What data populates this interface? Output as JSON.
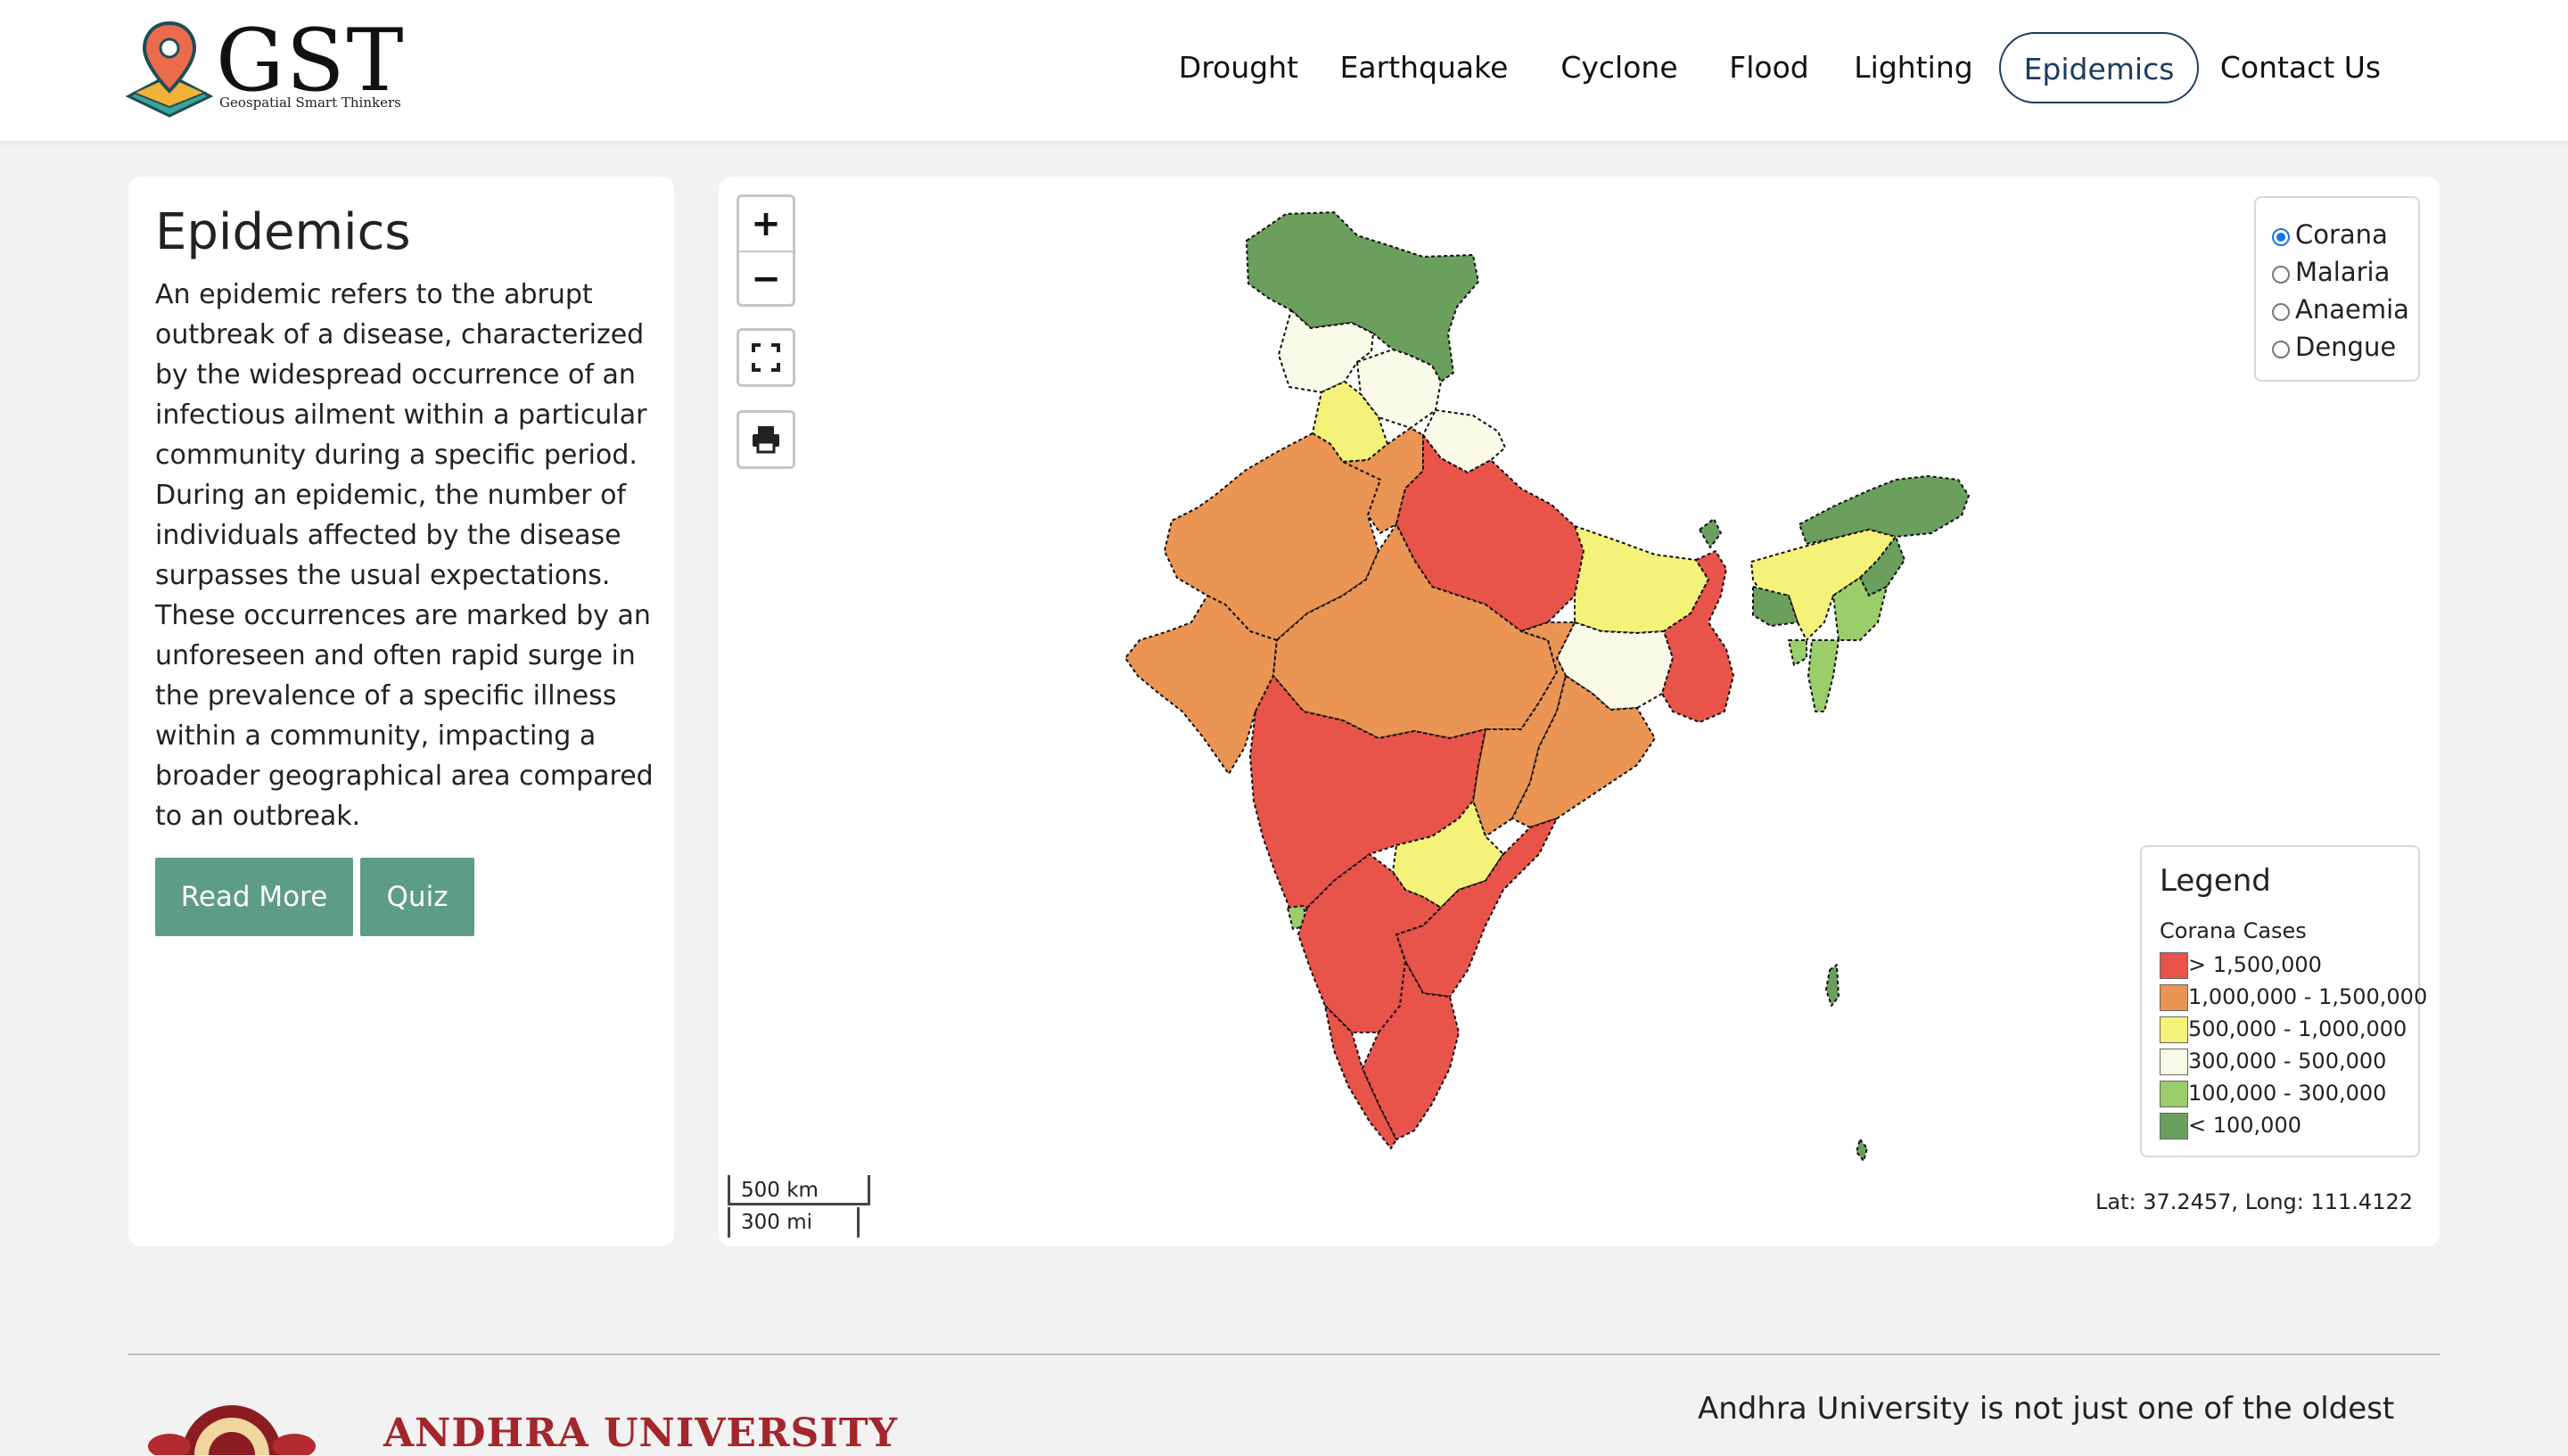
{
  "brand": {
    "name": "GST",
    "tagline": "Geospatial Smart Thinkers"
  },
  "nav": {
    "items": [
      {
        "label": "Drought",
        "active": false
      },
      {
        "label": "Earthquake",
        "active": false
      },
      {
        "label": "Cyclone",
        "active": false
      },
      {
        "label": "Flood",
        "active": false
      },
      {
        "label": "Lighting",
        "active": false
      },
      {
        "label": "Epidemics",
        "active": true
      },
      {
        "label": "Contact Us",
        "active": false
      }
    ]
  },
  "side": {
    "title": "Epidemics",
    "description": "An epidemic refers to the abrupt outbreak of a disease, characterized by the widespread occurrence of an infectious ailment within a particular community during a specific period. During an epidemic, the number of individuals affected by the disease surpasses the usual expectations. These occurrences are marked by an unforeseen and often rapid surge in the prevalence of a specific illness within a community, impacting a broader geographical area compared to an outbreak.",
    "read_more_label": "Read More",
    "quiz_label": "Quiz"
  },
  "map": {
    "zoom_in": "+",
    "zoom_out": "−",
    "layers": [
      {
        "label": "Corana",
        "selected": true
      },
      {
        "label": "Malaria",
        "selected": false
      },
      {
        "label": "Anaemia",
        "selected": false
      },
      {
        "label": "Dengue",
        "selected": false
      }
    ],
    "legend": {
      "title": "Legend",
      "subtitle": "Corana Cases",
      "rows": [
        {
          "label": "> 1,500,000",
          "color": "#e8534a"
        },
        {
          "label": "1,000,000 - 1,500,000",
          "color": "#ea9553"
        },
        {
          "label": "500,000 - 1,000,000",
          "color": "#f5f27a"
        },
        {
          "label": "300,000 - 500,000",
          "color": "#f9fbe8"
        },
        {
          "label": "100,000 - 300,000",
          "color": "#9ccd6b"
        },
        {
          "label": "< 100,000",
          "color": "#6a9f5e"
        }
      ]
    },
    "scale_km": "500 km",
    "scale_mi": "300 mi",
    "coords": "Lat: 37.2457, Long: 111.4122"
  },
  "footer": {
    "university": "ANDHRA UNIVERSITY",
    "blurb": "Andhra University is not just one of the oldest"
  }
}
